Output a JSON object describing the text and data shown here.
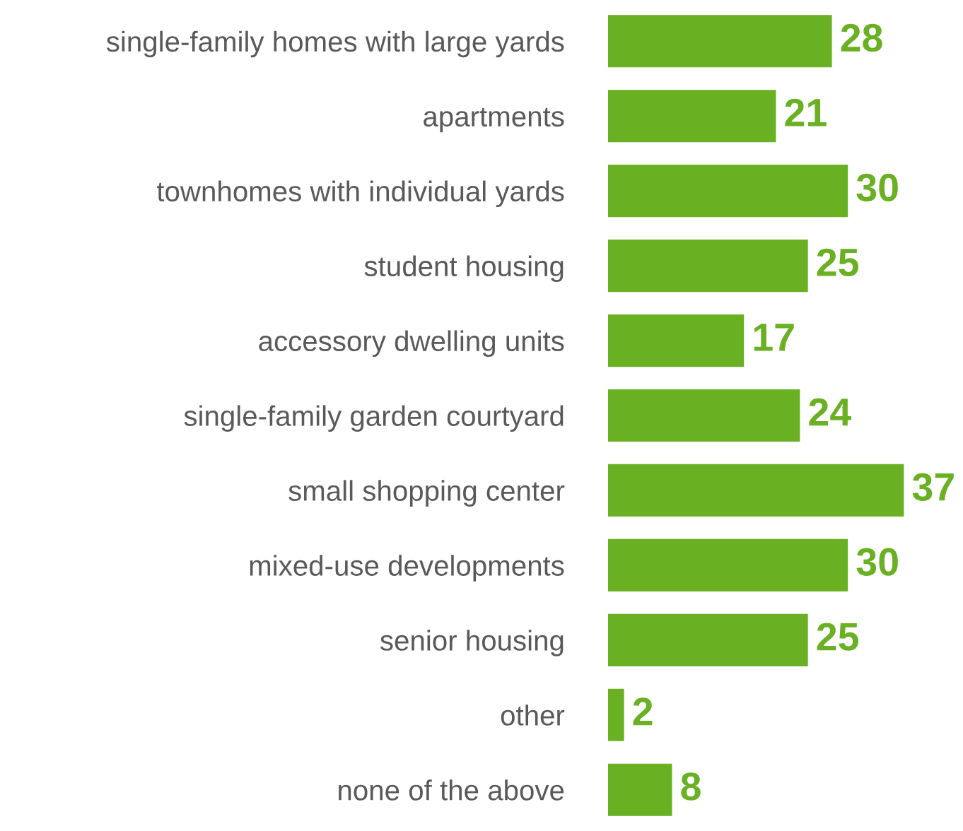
{
  "chart_data": {
    "type": "bar",
    "orientation": "horizontal",
    "categories": [
      "single-family homes with large yards",
      "apartments",
      "townhomes with individual yards",
      "student housing",
      "accessory dwelling units",
      "single-family garden courtyard",
      "small shopping center",
      "mixed-use developments",
      "senior housing",
      "other",
      "none of the above"
    ],
    "values": [
      28,
      21,
      30,
      25,
      17,
      24,
      37,
      30,
      25,
      2,
      8
    ],
    "color": "#6ab023",
    "data_labels": true,
    "grid": false,
    "legend": false
  }
}
